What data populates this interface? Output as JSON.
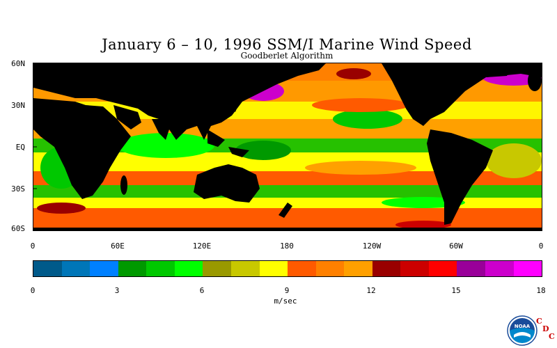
{
  "title": "January 6 – 10, 1996 SSM/I Marine Wind Speed",
  "subtitle": "Goodberlet Algorithm",
  "lat_labels": [
    "60N",
    "30N",
    "EQ",
    "30S",
    "60S"
  ],
  "lon_labels": [
    "0",
    "60E",
    "120E",
    "180",
    "120W",
    "60W",
    "0"
  ],
  "colorbar": {
    "colors": [
      "#005a8a",
      "#0076b8",
      "#0080ff",
      "#009900",
      "#00c800",
      "#00ff00",
      "#999900",
      "#c8c800",
      "#ffff00",
      "#ff5a00",
      "#ff8000",
      "#ffa000",
      "#990000",
      "#cc0000",
      "#ff0000",
      "#990099",
      "#cc00cc",
      "#ff00ff"
    ],
    "tick_labels": [
      "0",
      "3",
      "6",
      "9",
      "12",
      "15",
      "18"
    ],
    "min": 0,
    "max": 18,
    "units": "m/sec"
  },
  "colors": {
    "land": "#000000",
    "ocean_base": "#ff9900"
  },
  "logo": {
    "icon": "noaa-logo-icon",
    "text": "NOAA",
    "letters": [
      "C",
      "D",
      "C"
    ]
  }
}
